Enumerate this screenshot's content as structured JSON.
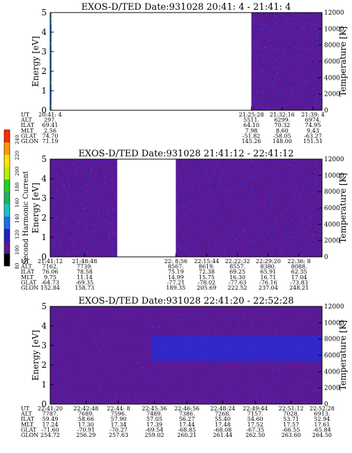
{
  "palette": {
    "background": "#5a1a96",
    "speckle": [
      "#2626c8",
      "#3a36d6",
      "#4a1aa0",
      "#1e1eb4",
      "#6a2aa6"
    ],
    "band": "#2b2ad0",
    "colorbar": [
      "#000000",
      "#5a1a96",
      "#2020c0",
      "#1e6ee6",
      "#17c3c8",
      "#22b060",
      "#22d024",
      "#b8f000",
      "#ffe600",
      "#ff9a00",
      "#ff2a00"
    ]
  },
  "colorbar": {
    "label": "Second Harmonic Current",
    "ticks": [
      "80",
      "100",
      "120",
      "140",
      "160",
      "180",
      "200",
      "220",
      "240"
    ]
  },
  "chart_data": [
    {
      "type": "heatmap",
      "title": "EXOS-D/TED   Date:931028  20:41: 4 - 21:41: 4",
      "ylabel": "Energy [eV]",
      "y2label": "Temperature [K]",
      "ylim": [
        0,
        5
      ],
      "y2lim": [
        0,
        12000
      ],
      "yticks": [
        "0",
        "1",
        "2",
        "3",
        "4",
        "5"
      ],
      "y2ticks": [
        "0",
        "2000",
        "4000",
        "6000",
        "8000",
        "10000",
        "12000"
      ],
      "time_range": [
        "20:41:04",
        "21:41:04"
      ],
      "data_intervals": [
        [
          "20:41:04",
          "20:41:20"
        ],
        [
          "21:25:28",
          "21:41:04"
        ]
      ],
      "orbit_table": {
        "rows": [
          "UT",
          "ALT",
          "ILAT",
          "MLT",
          "GLAT",
          "GLON"
        ],
        "columns": [
          {
            "time": "20:41:04",
            "values": [
              "20:41: 4",
              "297.",
              "69.41",
              "2.56",
              "74.70",
              "71.19"
            ]
          },
          {
            "time": "21:25:28",
            "values": [
              "21:25:28",
              "5511.",
              "64.10",
              "7.98",
              "-51.82",
              "145.26"
            ]
          },
          {
            "time": "21:32:16",
            "values": [
              "21:32:16",
              "6299.",
              "70.32",
              "8.60",
              "-58.05",
              "148.00"
            ]
          },
          {
            "time": "21:39:04",
            "values": [
              "21:39: 4",
              "6974.",
              "74.95",
              "9.43",
              "-63.27",
              "151.51"
            ]
          }
        ]
      }
    },
    {
      "type": "heatmap",
      "title": "EXOS-D/TED   Date:931028  21:41:12 - 22:41:12",
      "ylabel": "Energy [eV]",
      "y2label": "Temperature [K]",
      "ylim": [
        0,
        5
      ],
      "y2lim": [
        0,
        12000
      ],
      "yticks": [
        "0",
        "1",
        "2",
        "3",
        "4",
        "5"
      ],
      "y2ticks": [
        "0",
        "2000",
        "4000",
        "6000",
        "8000",
        "10000",
        "12000"
      ],
      "time_range": [
        "21:41:12",
        "22:41:12"
      ],
      "data_intervals": [
        [
          "21:41:12",
          "21:56:00"
        ],
        [
          "22:08:56",
          "22:41:12"
        ]
      ],
      "orbit_table": {
        "rows": [
          "UT",
          "ALT",
          "ILAT",
          "MLT",
          "GLAT",
          "GLON"
        ],
        "columns": [
          {
            "time": "21:41:12",
            "values": [
              "21:41:12",
              "7162.",
              "76.06",
              "9.75",
              "-64.73",
              "152.84"
            ]
          },
          {
            "time": "21:48:48",
            "values": [
              "21:48:48",
              "7739.",
              "78.58",
              "11.14",
              "-69.35",
              "158.73"
            ]
          },
          {
            "time": "22:08:56",
            "values": [
              "22: 8:56",
              "8567.",
              "75.19",
              "14.99",
              "-77.21",
              "189.35"
            ]
          },
          {
            "time": "22:15:44",
            "values": [
              "22:15:44",
              "8619.",
              "72.38",
              "15.75",
              "-78.02",
              "205.69"
            ]
          },
          {
            "time": "22:22:32",
            "values": [
              "22:22:32",
              "8557.",
              "69.25",
              "16.30",
              "-77.63",
              "222.52"
            ]
          },
          {
            "time": "22:29:20",
            "values": [
              "22:29:20",
              "8380.",
              "65.91",
              "16.71",
              "-76.16",
              "237.04"
            ]
          },
          {
            "time": "22:36:08",
            "values": [
              "22:36: 8",
              "8088.",
              "62.35",
              "17.04",
              "-73.83",
              "248.21"
            ]
          }
        ]
      }
    },
    {
      "type": "heatmap",
      "title": "EXOS-D/TED   Date:931028  22:41:20 - 22:52:28",
      "ylabel": "Energy [eV]",
      "y2label": "Temperature [K]",
      "ylim": [
        0,
        5
      ],
      "y2lim": [
        0,
        12000
      ],
      "yticks": [
        "0",
        "1",
        "2",
        "3",
        "4",
        "5"
      ],
      "y2ticks": [
        "0",
        "2000",
        "4000",
        "6000",
        "8000",
        "10000",
        "12000"
      ],
      "time_range": [
        "22:41:20",
        "22:52:28"
      ],
      "data_intervals": [
        [
          "22:41:20",
          "22:52:28"
        ]
      ],
      "band": {
        "x_start": "22:45:30",
        "x_end": "22:52:28",
        "y_low": 2.2,
        "y_high": 3.5
      },
      "orbit_table": {
        "rows": [
          "UT",
          "ALT",
          "ILAT",
          "MLT",
          "GLAT",
          "GLON"
        ],
        "columns": [
          {
            "time": "22:41:20",
            "values": [
              "22:41:20",
              "7787.",
              "59.49",
              "17.24",
              "-71.60",
              "254.72"
            ]
          },
          {
            "time": "22:42:48",
            "values": [
              "22:42:48",
              "7689.",
              "58.66",
              "17.30",
              "-70.91",
              "256.29"
            ]
          },
          {
            "time": "22:44:08",
            "values": [
              "22:44: 8",
              "7596.",
              "57.90",
              "17.34",
              "-70.27",
              "257.63"
            ]
          },
          {
            "time": "22:45:36",
            "values": [
              "22:45:36",
              "7489.",
              "57.05",
              "17.39",
              "-69.54",
              "259.02"
            ]
          },
          {
            "time": "22:46:56",
            "values": [
              "22:46:56",
              "7386.",
              "56.27",
              "17.44",
              "-68.85",
              "260.21"
            ]
          },
          {
            "time": "22:48:24",
            "values": [
              "22:48:24",
              "7268.",
              "55.40",
              "17.48",
              "-68.08",
              "261.44"
            ]
          },
          {
            "time": "22:49:44",
            "values": [
              "22:49:44",
              "7157.",
              "54.60",
              "17.52",
              "-67.35",
              "262.50"
            ]
          },
          {
            "time": "22:51:12",
            "values": [
              "22:51:12",
              "7028.",
              "53.71",
              "17.57",
              "-66.55",
              "263.60"
            ]
          },
          {
            "time": "22:52:28",
            "values": [
              "22:52:28",
              "6913.",
              "52.94",
              "17.61",
              "-65.84",
              "264.50"
            ]
          }
        ]
      }
    }
  ]
}
